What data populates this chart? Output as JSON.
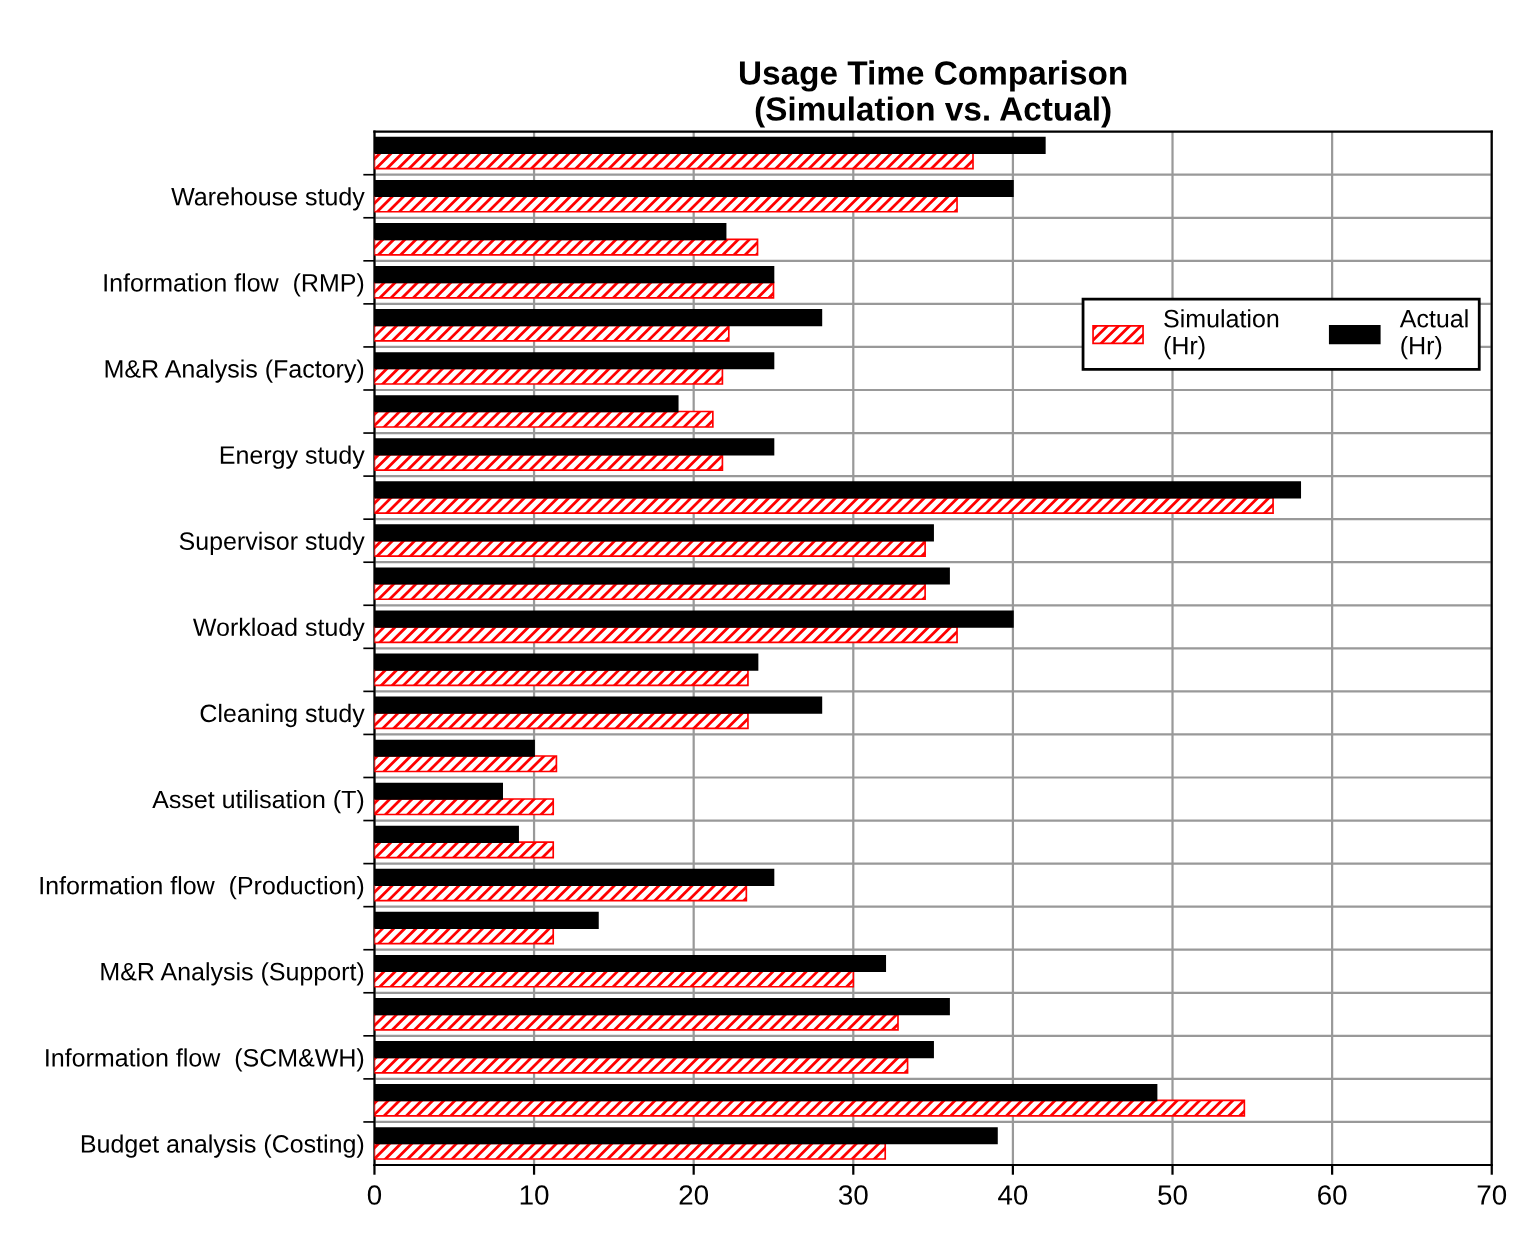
{
  "chart_data": {
    "type": "bar",
    "orientation": "horizontal",
    "title": "Usage Time Comparison\n(Simulation vs. Actual)",
    "categories": [
      null,
      "Warehouse study",
      null,
      "Information flow  (RMP)",
      null,
      "M&R Analysis (Factory)",
      null,
      "Energy study",
      null,
      "Supervisor study",
      null,
      "Workload study",
      null,
      "Cleaning study",
      null,
      "Asset utilisation (T)",
      null,
      "Information flow  (Production)",
      null,
      "M&R Analysis (Support)",
      null,
      "Information flow  (SCM&WH)",
      null,
      "Budget analysis (Costing)"
    ],
    "series": [
      {
        "name": "Simulation (Hr)",
        "color": "#ff0000",
        "values": [
          37.5,
          36.5,
          24,
          25,
          22.2,
          21.8,
          21.2,
          21.8,
          56.3,
          34.5,
          34.5,
          36.5,
          23.4,
          23.4,
          11.4,
          11.2,
          11.2,
          23.3,
          11.2,
          30,
          32.8,
          33.4,
          54.5,
          32
        ]
      },
      {
        "name": "Actual (Hr)",
        "color": "#000000",
        "values": [
          42,
          40,
          22,
          25,
          28,
          25,
          19,
          25,
          58,
          35,
          36,
          40,
          24,
          28,
          10,
          8,
          9,
          25,
          14,
          32,
          36,
          35,
          49,
          39
        ]
      }
    ],
    "xlim": [
      0,
      70
    ],
    "xticks": [
      0,
      10,
      20,
      30,
      40,
      50,
      60,
      70
    ],
    "grid": true,
    "legend": "top right"
  }
}
